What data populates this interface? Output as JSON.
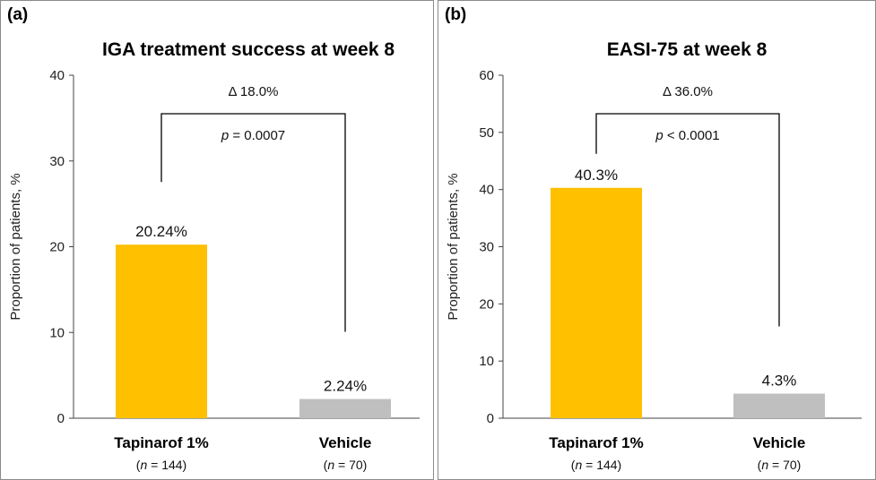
{
  "chart_data": [
    {
      "type": "bar",
      "panel_label": "(a)",
      "title": "IGA treatment success at week 8",
      "ylabel": "Proportion of patients, %",
      "xlabel": "",
      "ylim": [
        0,
        40
      ],
      "yticks": [
        0,
        10,
        20,
        30,
        40
      ],
      "categories": [
        "Tapinarof 1%",
        "Vehicle"
      ],
      "category_n": [
        "144",
        "70"
      ],
      "values": [
        20.24,
        2.24
      ],
      "value_labels": [
        "20.24%",
        "2.24%"
      ],
      "colors": [
        "#FFC000",
        "#BFBFBF"
      ],
      "comparison": {
        "delta": "18.0%",
        "p_op": "=",
        "p_value": "0.0007"
      }
    },
    {
      "type": "bar",
      "panel_label": "(b)",
      "title": "EASI-75 at week 8",
      "ylabel": "Proportion of patients, %",
      "xlabel": "",
      "ylim": [
        0,
        60
      ],
      "yticks": [
        0,
        10,
        20,
        30,
        40,
        50,
        60
      ],
      "categories": [
        "Tapinarof 1%",
        "Vehicle"
      ],
      "category_n": [
        "144",
        "70"
      ],
      "values": [
        40.3,
        4.3
      ],
      "value_labels": [
        "40.3%",
        "4.3%"
      ],
      "colors": [
        "#FFC000",
        "#BFBFBF"
      ],
      "comparison": {
        "delta": "36.0%",
        "p_op": "<",
        "p_value": "0.0001"
      }
    }
  ]
}
